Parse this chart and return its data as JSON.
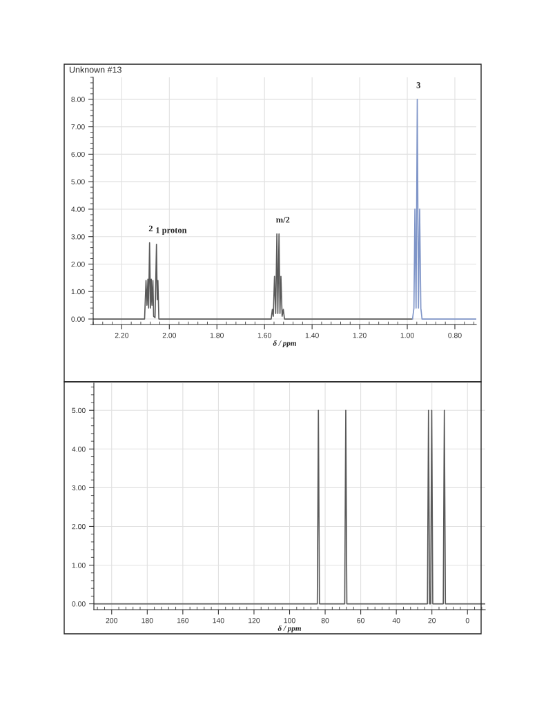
{
  "chart_data": [
    {
      "type": "line",
      "title": "Unknown #13",
      "xlabel": "δ / ppm",
      "xlim": [
        2.32,
        0.71
      ],
      "ylim": [
        -0.2,
        8.8
      ],
      "xticks": [
        {
          "value": 2.2,
          "label": "2.20"
        },
        {
          "value": 2.0,
          "label": "2.00"
        },
        {
          "value": 1.8,
          "label": "1.80"
        },
        {
          "value": 1.6,
          "label": "1.60"
        },
        {
          "value": 1.4,
          "label": "1.40"
        },
        {
          "value": 1.2,
          "label": "1.20"
        },
        {
          "value": 1.0,
          "label": "1.00"
        },
        {
          "value": 0.8,
          "label": "0.80"
        }
      ],
      "yticks": [
        {
          "value": 0,
          "label": "0.00"
        },
        {
          "value": 1,
          "label": "1.00"
        },
        {
          "value": 2,
          "label": "2.00"
        },
        {
          "value": 3,
          "label": "3.00"
        },
        {
          "value": 4,
          "label": "4.00"
        },
        {
          "value": 5,
          "label": "5.00"
        },
        {
          "value": 6,
          "label": "6.00"
        },
        {
          "value": 7,
          "label": "7.00"
        },
        {
          "value": 8,
          "label": "8.00"
        }
      ],
      "grid": true,
      "annotations": [
        {
          "text": "2",
          "x": 2.083,
          "y": 2.78
        },
        {
          "text": "1 proton",
          "x": 2.054,
          "y": 2.72
        },
        {
          "text": "m/2",
          "x": 1.548,
          "y": 3.1
        },
        {
          "text": "3",
          "x": 0.958,
          "y": 8.0
        }
      ],
      "series": [
        {
          "color": "#5a5a5a",
          "x": [
            2.32,
            2.104,
            2.098,
            2.094,
            2.09,
            2.087,
            2.083,
            2.079,
            2.076,
            2.073,
            2.069,
            2.066,
            2.06,
            2.054,
            2.051,
            2.048,
            2.044,
            1.572,
            1.567,
            1.563,
            1.558,
            1.553,
            1.548,
            1.544,
            1.539,
            1.535,
            1.531,
            1.526,
            1.521,
            1.516,
            0.978
          ],
          "values": [
            0,
            0,
            1.4,
            0.5,
            1.45,
            0.4,
            2.78,
            0.4,
            1.45,
            0.5,
            1.4,
            0.1,
            0.05,
            2.72,
            0.7,
            1.4,
            0,
            0,
            0.35,
            0.1,
            1.55,
            0.2,
            3.1,
            0.2,
            3.1,
            0.2,
            1.55,
            0.1,
            0.35,
            0,
            0
          ]
        },
        {
          "color": "#7f95c8",
          "x": [
            0.978,
            0.972,
            0.968,
            0.963,
            0.958,
            0.953,
            0.948,
            0.943,
            0.938,
            0.71
          ],
          "values": [
            0,
            0.4,
            4.0,
            0.4,
            8.0,
            0.4,
            4.0,
            0.4,
            0,
            0
          ]
        }
      ]
    },
    {
      "type": "line",
      "xlabel": "δ / ppm",
      "xlim": [
        210,
        -10
      ],
      "ylim": [
        -0.15,
        5.7
      ],
      "xticks": [
        200,
        180,
        160,
        140,
        120,
        100,
        80,
        60,
        40,
        20,
        0
      ],
      "yticks": [
        {
          "value": 0,
          "label": "0.00"
        },
        {
          "value": 1,
          "label": "1.00"
        },
        {
          "value": 2,
          "label": "2.00"
        },
        {
          "value": 3,
          "label": "3.00"
        },
        {
          "value": 4,
          "label": "4.00"
        },
        {
          "value": 5,
          "label": "5.00"
        }
      ],
      "grid": true,
      "series": [
        {
          "color": "#5a5a5a",
          "x": [
            210,
            84.4,
            83.8,
            83.2,
            69.0,
            68.4,
            67.8,
            22.5,
            21.9,
            21.3,
            20.7,
            20.1,
            19.5,
            13.6,
            13.0,
            12.4,
            -10
          ],
          "values": [
            0,
            0,
            5.0,
            0,
            0,
            5.0,
            0,
            0,
            5.0,
            0,
            0,
            5.0,
            0,
            0,
            5.0,
            0,
            0
          ]
        }
      ]
    }
  ]
}
